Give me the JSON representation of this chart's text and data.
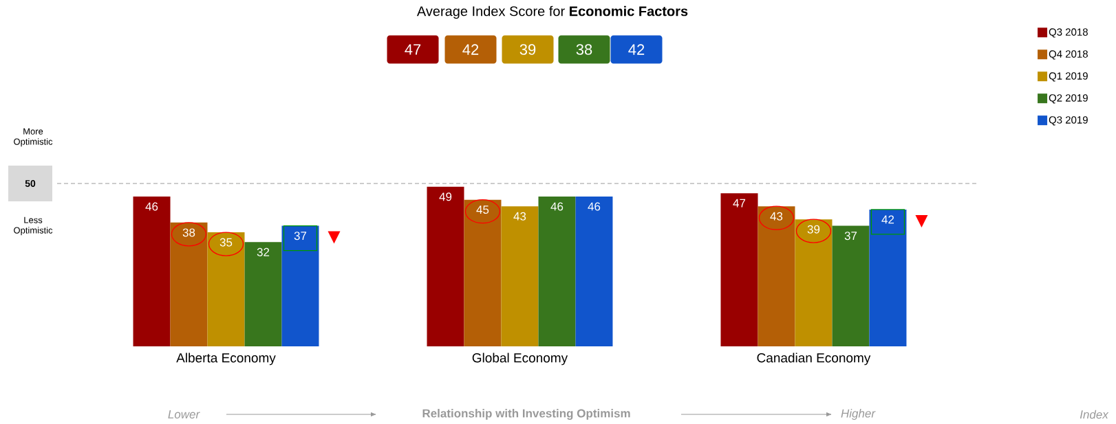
{
  "chart_data": {
    "type": "bar",
    "title": "Average Index Score for **Economic Factors**",
    "categories": [
      "Alberta Economy",
      "Global Economy",
      "Canadian Economy"
    ],
    "series": [
      {
        "name": "Q3 2018",
        "color": "#990000",
        "values": [
          46,
          49,
          47
        ]
      },
      {
        "name": "Q4 2018",
        "color": "#b45f06",
        "values": [
          38,
          45,
          43
        ]
      },
      {
        "name": "Q1 2019",
        "color": "#bf9000",
        "values": [
          35,
          43,
          39
        ]
      },
      {
        "name": "Q2 2019",
        "color": "#38761d",
        "values": [
          32,
          46,
          37
        ]
      },
      {
        "name": "Q3 2019",
        "color": "#1155cc",
        "values": [
          37,
          46,
          42
        ]
      }
    ],
    "ylim": [
      0,
      50
    ],
    "ref_lines": [
      {
        "axis": "y",
        "value": 50,
        "label": "50",
        "color": "#999999",
        "line_style": "dashed"
      }
    ],
    "annotations": [
      "More Optimistic",
      "Less Optimistic",
      "47",
      "42",
      "39",
      "38",
      "42",
      "Lower",
      "Relationship with Investing Optimism",
      "Higher",
      "Index"
    ],
    "data_labels": true,
    "legend": "top right"
  }
}
